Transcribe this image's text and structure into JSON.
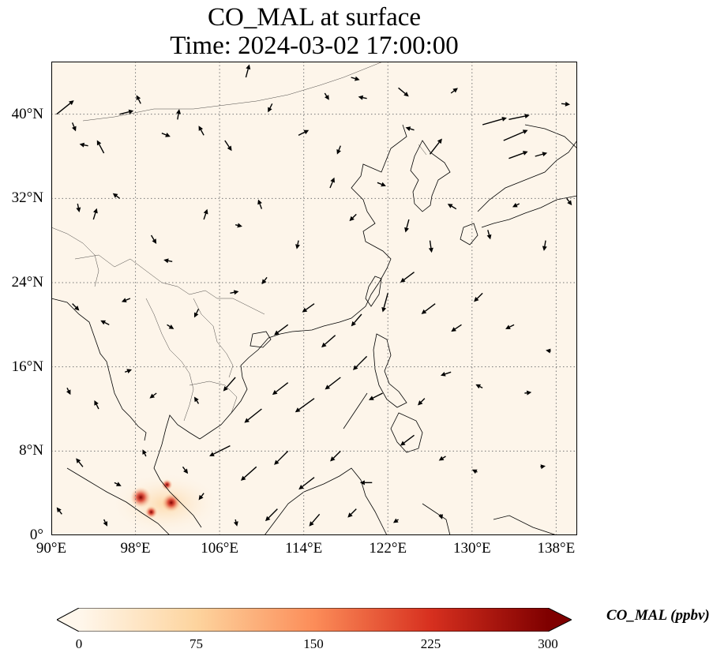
{
  "title": {
    "line1": "CO_MAL at surface",
    "line2": "Time: 2024-03-02 17:00:00"
  },
  "map": {
    "lon_range": [
      90,
      140
    ],
    "lat_range": [
      0,
      45
    ],
    "grid": "dotted",
    "background_color": "#fdf5ea",
    "coastline_color": "#000000",
    "arrow_color": "#000000"
  },
  "x_ticks": [
    {
      "value": 90,
      "label": "90°E"
    },
    {
      "value": 98,
      "label": "98°E"
    },
    {
      "value": 106,
      "label": "106°E"
    },
    {
      "value": 114,
      "label": "114°E"
    },
    {
      "value": 122,
      "label": "122°E"
    },
    {
      "value": 130,
      "label": "130°E"
    },
    {
      "value": 138,
      "label": "138°E"
    }
  ],
  "y_ticks": [
    {
      "value": 0,
      "label": "0°"
    },
    {
      "value": 8,
      "label": "8°N"
    },
    {
      "value": 16,
      "label": "16°N"
    },
    {
      "value": 24,
      "label": "24°N"
    },
    {
      "value": 32,
      "label": "32°N"
    },
    {
      "value": 40,
      "label": "40°N"
    }
  ],
  "colorbar": {
    "label": "CO_MAL (ppbv)",
    "min": 0,
    "max": 300,
    "extend": "both",
    "colormap": "OrRd",
    "stops": [
      "#fff7ec",
      "#fdd49e",
      "#fc8d59",
      "#d7301f",
      "#7f0000"
    ],
    "ticks": [
      "0",
      "75",
      "150",
      "225",
      "300"
    ]
  },
  "hotspots": [
    {
      "lon": 98.5,
      "lat": 3.6,
      "value": 280
    },
    {
      "lon": 101.4,
      "lat": 3.1,
      "value": 240
    },
    {
      "lon": 99.5,
      "lat": 2.2,
      "value": 120
    },
    {
      "lon": 101.0,
      "lat": 4.8,
      "value": 90
    }
  ],
  "wind_vectors": [
    {
      "lon": 90.5,
      "lat": 40.0,
      "u": 2,
      "v": 1.6
    },
    {
      "lon": 92.0,
      "lat": 39.2,
      "u": 0.4,
      "v": -1
    },
    {
      "lon": 93.5,
      "lat": 37.0,
      "u": -1,
      "v": 0.2
    },
    {
      "lon": 95.0,
      "lat": 36.3,
      "u": -0.8,
      "v": 1.5
    },
    {
      "lon": 96.5,
      "lat": 40.0,
      "u": 1.6,
      "v": 0.4
    },
    {
      "lon": 98.5,
      "lat": 41.0,
      "u": -0.5,
      "v": 1
    },
    {
      "lon": 100.5,
      "lat": 38.2,
      "u": 1,
      "v": -0.4
    },
    {
      "lon": 102.0,
      "lat": 39.5,
      "u": 0.2,
      "v": 1.2
    },
    {
      "lon": 104.5,
      "lat": 38.0,
      "u": -0.6,
      "v": 1.1
    },
    {
      "lon": 106.5,
      "lat": 37.5,
      "u": 0.8,
      "v": -1.2
    },
    {
      "lon": 108.5,
      "lat": 43.5,
      "u": 0.4,
      "v": 1.5
    },
    {
      "lon": 111.0,
      "lat": 41.0,
      "u": -0.5,
      "v": -1
    },
    {
      "lon": 113.5,
      "lat": 38.0,
      "u": 1.2,
      "v": 0.6
    },
    {
      "lon": 116.0,
      "lat": 42.0,
      "u": 0.5,
      "v": -0.8
    },
    {
      "lon": 117.5,
      "lat": 37.0,
      "u": -0.4,
      "v": -1
    },
    {
      "lon": 118.5,
      "lat": 43.5,
      "u": 1,
      "v": -0.3
    },
    {
      "lon": 120.0,
      "lat": 41.5,
      "u": -1,
      "v": 0.2
    },
    {
      "lon": 123.0,
      "lat": 42.5,
      "u": 1.2,
      "v": -1
    },
    {
      "lon": 124.5,
      "lat": 38.5,
      "u": -1,
      "v": 0.3
    },
    {
      "lon": 126.0,
      "lat": 36.2,
      "u": 1.4,
      "v": 1.8
    },
    {
      "lon": 128.0,
      "lat": 42.0,
      "u": 0.8,
      "v": 0.6
    },
    {
      "lon": 131.0,
      "lat": 39.0,
      "u": 2.8,
      "v": 0.8
    },
    {
      "lon": 133.5,
      "lat": 39.5,
      "u": 2.4,
      "v": 0.5
    },
    {
      "lon": 133.0,
      "lat": 37.5,
      "u": 2.8,
      "v": 1.2
    },
    {
      "lon": 133.5,
      "lat": 35.8,
      "u": 2.2,
      "v": 0.8
    },
    {
      "lon": 136.0,
      "lat": 36.0,
      "u": 1.4,
      "v": 0.4
    },
    {
      "lon": 138.5,
      "lat": 41.0,
      "u": 1,
      "v": -0.1
    },
    {
      "lon": 139.0,
      "lat": 32.0,
      "u": 0.6,
      "v": -0.8
    },
    {
      "lon": 92.5,
      "lat": 31.5,
      "u": 0.2,
      "v": -1
    },
    {
      "lon": 94.0,
      "lat": 30.0,
      "u": 0.4,
      "v": 1.3
    },
    {
      "lon": 96.5,
      "lat": 32.0,
      "u": -0.8,
      "v": 0.6
    },
    {
      "lon": 99.5,
      "lat": 28.5,
      "u": 0.6,
      "v": -1
    },
    {
      "lon": 101.5,
      "lat": 26.0,
      "u": -1,
      "v": 0.2
    },
    {
      "lon": 104.5,
      "lat": 30.0,
      "u": 0.4,
      "v": 1.2
    },
    {
      "lon": 107.5,
      "lat": 29.5,
      "u": 0.8,
      "v": -0.2
    },
    {
      "lon": 110.0,
      "lat": 31.0,
      "u": -0.4,
      "v": 1.1
    },
    {
      "lon": 113.5,
      "lat": 28.0,
      "u": -0.2,
      "v": -1
    },
    {
      "lon": 116.5,
      "lat": 33.0,
      "u": 0.5,
      "v": 1.2
    },
    {
      "lon": 119.0,
      "lat": 30.5,
      "u": -0.8,
      "v": -0.8
    },
    {
      "lon": 121.0,
      "lat": 33.5,
      "u": 1,
      "v": -0.4
    },
    {
      "lon": 124.0,
      "lat": 30.0,
      "u": -0.4,
      "v": -1.5
    },
    {
      "lon": 126.0,
      "lat": 28.0,
      "u": 0.2,
      "v": -1.4
    },
    {
      "lon": 128.5,
      "lat": 31.0,
      "u": -1,
      "v": 0.6
    },
    {
      "lon": 131.5,
      "lat": 29.0,
      "u": 0.3,
      "v": -1.1
    },
    {
      "lon": 134.5,
      "lat": 31.5,
      "u": -0.8,
      "v": -0.4
    },
    {
      "lon": 137.0,
      "lat": 28.0,
      "u": -0.2,
      "v": -1.2
    },
    {
      "lon": 92.0,
      "lat": 22.0,
      "u": 0.8,
      "v": -0.8
    },
    {
      "lon": 95.5,
      "lat": 20.0,
      "u": -1,
      "v": 0.5
    },
    {
      "lon": 97.5,
      "lat": 22.5,
      "u": -1,
      "v": -0.4
    },
    {
      "lon": 101.0,
      "lat": 20.0,
      "u": 0.8,
      "v": -0.5
    },
    {
      "lon": 104.0,
      "lat": 21.5,
      "u": -0.5,
      "v": -1
    },
    {
      "lon": 107.0,
      "lat": 23.0,
      "u": 1,
      "v": 0.2
    },
    {
      "lon": 110.5,
      "lat": 24.5,
      "u": -0.6,
      "v": -0.8
    },
    {
      "lon": 112.5,
      "lat": 20.0,
      "u": -1.6,
      "v": -1.2
    },
    {
      "lon": 115.0,
      "lat": 22.0,
      "u": -1.4,
      "v": -1
    },
    {
      "lon": 117.0,
      "lat": 19.0,
      "u": -1.6,
      "v": -1.4
    },
    {
      "lon": 119.5,
      "lat": 21.0,
      "u": -1.2,
      "v": -1.4
    },
    {
      "lon": 122.0,
      "lat": 23.0,
      "u": -0.6,
      "v": -2.2
    },
    {
      "lon": 124.5,
      "lat": 25.0,
      "u": -1.6,
      "v": -1.2
    },
    {
      "lon": 126.5,
      "lat": 22.0,
      "u": -1.6,
      "v": -1.2
    },
    {
      "lon": 129.0,
      "lat": 20.0,
      "u": -1.2,
      "v": -0.8
    },
    {
      "lon": 131.0,
      "lat": 23.0,
      "u": -1,
      "v": -1
    },
    {
      "lon": 134.0,
      "lat": 20.0,
      "u": -1,
      "v": -0.5
    },
    {
      "lon": 137.5,
      "lat": 17.5,
      "u": -0.6,
      "v": 0.1
    },
    {
      "lon": 91.5,
      "lat": 14.0,
      "u": 0.4,
      "v": -0.8
    },
    {
      "lon": 94.5,
      "lat": 12.0,
      "u": -0.5,
      "v": 1
    },
    {
      "lon": 97.0,
      "lat": 15.5,
      "u": 0.8,
      "v": 0.3
    },
    {
      "lon": 100.0,
      "lat": 13.5,
      "u": -0.8,
      "v": -0.6
    },
    {
      "lon": 104.0,
      "lat": 12.5,
      "u": -0.5,
      "v": 0.8
    },
    {
      "lon": 107.5,
      "lat": 15.0,
      "u": -1.4,
      "v": -1.6
    },
    {
      "lon": 110.0,
      "lat": 12.0,
      "u": -2,
      "v": -1.6
    },
    {
      "lon": 112.5,
      "lat": 14.5,
      "u": -1.8,
      "v": -1.4
    },
    {
      "lon": 115.0,
      "lat": 13.0,
      "u": -2.2,
      "v": -1.6
    },
    {
      "lon": 117.5,
      "lat": 15.0,
      "u": -1.8,
      "v": -1.4
    },
    {
      "lon": 120.0,
      "lat": 17.0,
      "u": -1.6,
      "v": -1.6
    },
    {
      "lon": 121.5,
      "lat": 13.5,
      "u": -1.6,
      "v": -0.8
    },
    {
      "lon": 125.5,
      "lat": 13.0,
      "u": -0.8,
      "v": -0.8
    },
    {
      "lon": 128.0,
      "lat": 15.5,
      "u": -1.2,
      "v": -0.4
    },
    {
      "lon": 131.0,
      "lat": 14.0,
      "u": -0.8,
      "v": 0.4
    },
    {
      "lon": 135.0,
      "lat": 13.5,
      "u": 0.8,
      "v": 0.1
    },
    {
      "lon": 93.0,
      "lat": 6.5,
      "u": -0.8,
      "v": 1
    },
    {
      "lon": 96.0,
      "lat": 5.0,
      "u": 0.8,
      "v": -0.4
    },
    {
      "lon": 99.0,
      "lat": 7.5,
      "u": -0.4,
      "v": 0.8
    },
    {
      "lon": 102.5,
      "lat": 6.5,
      "u": 0.6,
      "v": -0.8
    },
    {
      "lon": 104.5,
      "lat": 4.0,
      "u": -0.6,
      "v": -0.8
    },
    {
      "lon": 107.0,
      "lat": 8.5,
      "u": -2.4,
      "v": -1.2
    },
    {
      "lon": 109.5,
      "lat": 6.5,
      "u": -1.8,
      "v": -1.6
    },
    {
      "lon": 112.5,
      "lat": 8.0,
      "u": -1.6,
      "v": -1.6
    },
    {
      "lon": 115.0,
      "lat": 5.5,
      "u": -1.8,
      "v": -1.4
    },
    {
      "lon": 117.5,
      "lat": 8.0,
      "u": -1.2,
      "v": -1.2
    },
    {
      "lon": 120.5,
      "lat": 5.0,
      "u": -1.4,
      "v": 0
    },
    {
      "lon": 124.5,
      "lat": 9.5,
      "u": -1.6,
      "v": -1.2
    },
    {
      "lon": 127.5,
      "lat": 7.5,
      "u": -0.8,
      "v": -0.5
    },
    {
      "lon": 130.5,
      "lat": 6.0,
      "u": -0.6,
      "v": 0.3
    },
    {
      "lon": 136.5,
      "lat": 6.5,
      "u": 0.6,
      "v": 0.1
    },
    {
      "lon": 91.0,
      "lat": 2.0,
      "u": -0.6,
      "v": 0.8
    },
    {
      "lon": 95.0,
      "lat": 1.5,
      "u": 0.4,
      "v": -0.8
    },
    {
      "lon": 107.5,
      "lat": 1.5,
      "u": 0.2,
      "v": -0.8
    },
    {
      "lon": 111.5,
      "lat": 2.5,
      "u": -1.4,
      "v": -1.4
    },
    {
      "lon": 115.5,
      "lat": 2.0,
      "u": -1.2,
      "v": -1.4
    },
    {
      "lon": 119.0,
      "lat": 2.5,
      "u": -1,
      "v": -1
    },
    {
      "lon": 123.0,
      "lat": 1.5,
      "u": -0.6,
      "v": -0.4
    },
    {
      "lon": 127.0,
      "lat": 2.0,
      "u": 0.2,
      "v": -0.6
    }
  ]
}
